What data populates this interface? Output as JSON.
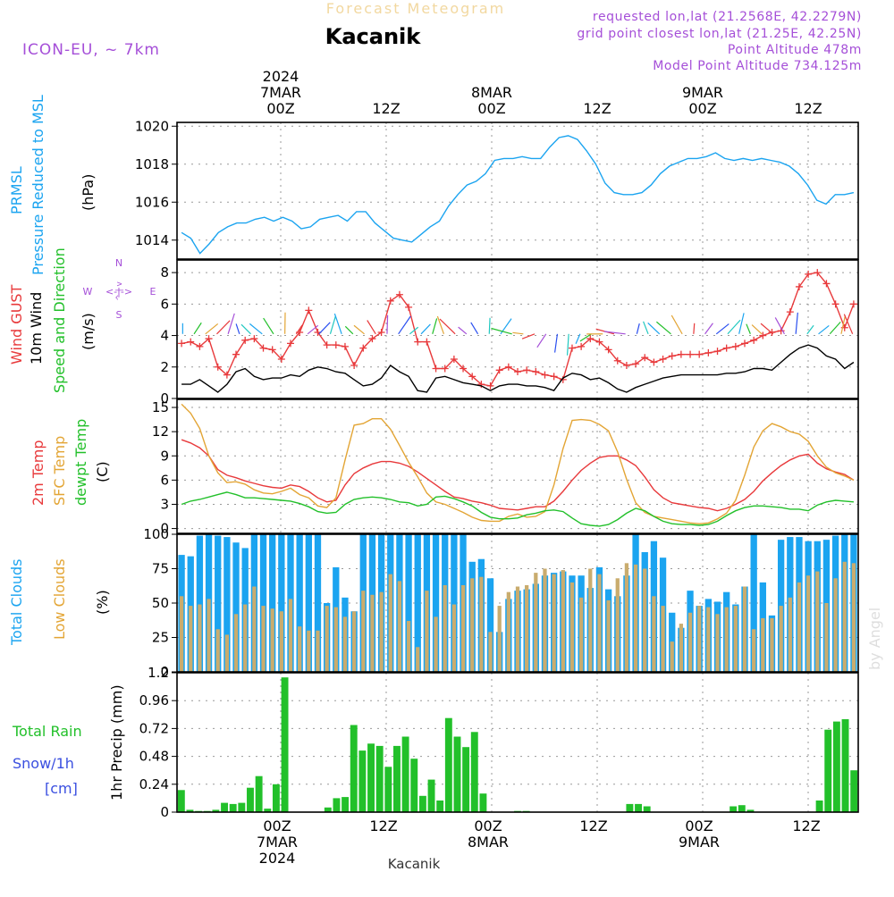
{
  "header": {
    "top_title": "Forecast Meteogram",
    "location": "Kacanik",
    "model": "ICON-EU, ~ 7km",
    "requested": "requested lon,lat (21.2568E, 42.2279N)",
    "grid_point": "grid point closest lon,lat (21.25E, 42.25N)",
    "point_altitude": "Point Altitude 478m",
    "model_altitude": "Model Point Altitude 734.125m",
    "footer_location": "Kacanik",
    "watermark": "by Angel"
  },
  "time_axis": {
    "ticks": [
      "00Z",
      "12Z",
      "00Z",
      "12Z",
      "00Z",
      "12Z"
    ],
    "days": [
      "7MAR",
      "8MAR",
      "9MAR"
    ],
    "year": "2024"
  },
  "colors": {
    "blue": "#1ba4f0",
    "red": "#e8393b",
    "orange": "#e3a535",
    "green": "#22c02a",
    "black": "#000000",
    "purple": "#a54fd8",
    "tan": "#c9ac6e"
  },
  "panel_labels": {
    "pressure": [
      "PRMSL",
      "Pressure Reduced to MSL",
      "(hPa)"
    ],
    "wind": [
      "Wind GUST",
      "10m Wind",
      "Speed and Direction",
      "(m/s)"
    ],
    "compass": {
      "n": "N",
      "s": "S",
      "w": "W",
      "e": "E",
      "ns": "^\n|\nv",
      "we": "<-|->"
    },
    "temp": [
      "2m Temp",
      "SFC Temp",
      "dewpt Temp",
      "(C)"
    ],
    "clouds": [
      "Total Clouds",
      "Low Clouds",
      "(%)"
    ],
    "precip": [
      "Total Rain",
      "Snow/1h",
      "[cm]",
      "1hr Precip (mm)"
    ]
  },
  "chart_data": [
    {
      "type": "line",
      "title": "PRMSL Pressure Reduced to MSL",
      "ylabel": "(hPa)",
      "ylim": [
        1013,
        1020.2
      ],
      "yticks": [
        1014,
        1016,
        1018,
        1020
      ],
      "xlim": [
        0,
        73
      ],
      "series": [
        {
          "name": "PRMSL",
          "color": "#1ba4f0",
          "values": [
            1014.4,
            1014.1,
            1013.3,
            1013.8,
            1014.4,
            1014.7,
            1014.9,
            1014.9,
            1015.1,
            1015.2,
            1015.0,
            1015.2,
            1015.0,
            1014.6,
            1014.7,
            1015.1,
            1015.2,
            1015.3,
            1015.0,
            1015.5,
            1015.5,
            1014.9,
            1014.5,
            1014.1,
            1014.0,
            1013.9,
            1014.3,
            1014.7,
            1015.0,
            1015.8,
            1016.4,
            1016.9,
            1017.1,
            1017.5,
            1018.2,
            1018.3,
            1018.3,
            1018.4,
            1018.3,
            1018.3,
            1018.9,
            1019.4,
            1019.5,
            1019.3,
            1018.7,
            1018.0,
            1017.0,
            1016.5,
            1016.4,
            1016.4,
            1016.5,
            1016.9,
            1017.5,
            1017.9,
            1018.1,
            1018.3,
            1018.3,
            1018.4,
            1018.6,
            1018.3,
            1018.2,
            1018.3,
            1018.2,
            1018.3,
            1018.2,
            1018.1,
            1017.9,
            1017.5,
            1016.9,
            1016.1,
            1015.9,
            1016.4,
            1016.4,
            1016.5
          ]
        }
      ]
    },
    {
      "type": "line",
      "title": "Wind GUST / 10m Wind Speed and Direction",
      "ylabel": "(m/s)",
      "ylim": [
        0,
        8.8
      ],
      "yticks": [
        0,
        2,
        4,
        6,
        8
      ],
      "xlim": [
        0,
        73
      ],
      "series": [
        {
          "name": "Wind GUST",
          "color": "#e8393b",
          "values": [
            3.5,
            3.6,
            3.3,
            3.8,
            2.0,
            1.5,
            2.8,
            3.7,
            3.8,
            3.2,
            3.1,
            2.5,
            3.5,
            4.2,
            5.6,
            4.2,
            3.4,
            3.4,
            3.3,
            2.1,
            3.2,
            3.8,
            4.2,
            6.2,
            6.6,
            5.8,
            3.6,
            3.6,
            1.9,
            1.9,
            2.5,
            1.9,
            1.4,
            0.9,
            0.8,
            1.8,
            2.0,
            1.7,
            1.8,
            1.7,
            1.5,
            1.4,
            1.2,
            3.2,
            3.3,
            3.8,
            3.6,
            3.1,
            2.4,
            2.1,
            2.2,
            2.6,
            2.3,
            2.5,
            2.7,
            2.8,
            2.8,
            2.8,
            2.9,
            3.0,
            3.2,
            3.3,
            3.5,
            3.7,
            4.0,
            4.2,
            4.3,
            5.5,
            7.1,
            7.9,
            8.0,
            7.3,
            6.0,
            4.5,
            6.0
          ]
        },
        {
          "name": "10m Wind",
          "color": "#000000",
          "values": [
            0.9,
            0.9,
            1.2,
            0.8,
            0.4,
            0.9,
            1.7,
            1.9,
            1.4,
            1.2,
            1.3,
            1.3,
            1.5,
            1.4,
            1.8,
            2.0,
            1.9,
            1.7,
            1.6,
            1.2,
            0.8,
            0.9,
            1.3,
            2.1,
            1.7,
            1.4,
            0.5,
            0.4,
            1.3,
            1.4,
            1.2,
            1.0,
            0.9,
            0.8,
            0.5,
            0.8,
            0.9,
            0.9,
            0.8,
            0.8,
            0.7,
            0.5,
            1.3,
            1.6,
            1.5,
            1.2,
            1.3,
            1.0,
            0.6,
            0.4,
            0.7,
            0.9,
            1.1,
            1.3,
            1.4,
            1.5,
            1.5,
            1.5,
            1.5,
            1.5,
            1.6,
            1.6,
            1.7,
            1.9,
            1.9,
            1.8,
            2.3,
            2.8,
            3.2,
            3.4,
            3.2,
            2.7,
            2.5,
            1.9,
            2.3
          ]
        }
      ]
    },
    {
      "type": "line",
      "title": "2m Temp / SFC Temp / dewpt Temp",
      "ylabel": "(C)",
      "ylim": [
        -0.6,
        16
      ],
      "yticks": [
        0,
        3,
        6,
        9,
        12,
        15
      ],
      "xlim": [
        0,
        73
      ],
      "series": [
        {
          "name": "2m Temp",
          "color": "#e8393b",
          "values": [
            11.0,
            10.6,
            10.0,
            9.0,
            7.3,
            6.6,
            6.3,
            5.9,
            5.6,
            5.3,
            5.1,
            5.0,
            5.4,
            5.2,
            4.6,
            3.8,
            3.3,
            3.5,
            5.4,
            6.8,
            7.5,
            8.0,
            8.3,
            8.3,
            8.1,
            7.7,
            7.0,
            6.2,
            5.4,
            4.6,
            3.9,
            3.7,
            3.4,
            3.2,
            2.9,
            2.5,
            2.4,
            2.3,
            2.5,
            2.7,
            2.7,
            3.4,
            4.6,
            6.0,
            7.2,
            8.1,
            8.8,
            9.0,
            9.0,
            8.5,
            7.8,
            6.4,
            4.8,
            3.8,
            3.2,
            3.0,
            2.8,
            2.6,
            2.5,
            2.2,
            2.5,
            3.0,
            3.6,
            4.6,
            5.9,
            6.9,
            7.8,
            8.5,
            9.0,
            9.2,
            8.1,
            7.4,
            7.0,
            6.7,
            6.0
          ]
        },
        {
          "name": "SFC Temp",
          "color": "#e3a535",
          "values": [
            15.4,
            14.3,
            12.4,
            9.0,
            6.9,
            5.7,
            5.8,
            5.5,
            4.8,
            4.4,
            4.3,
            4.6,
            5.0,
            4.2,
            3.8,
            2.8,
            2.6,
            3.8,
            8.5,
            12.8,
            13.0,
            13.6,
            13.6,
            12.3,
            10.3,
            8.2,
            6.4,
            4.4,
            3.3,
            3.0,
            2.5,
            2.0,
            1.4,
            1.0,
            0.9,
            0.9,
            1.5,
            1.8,
            1.4,
            1.5,
            2.1,
            5.4,
            9.9,
            13.4,
            13.5,
            13.4,
            12.9,
            12.1,
            9.5,
            6.1,
            3.2,
            2.0,
            1.5,
            1.3,
            1.1,
            0.9,
            0.7,
            0.6,
            0.7,
            1.2,
            1.9,
            3.5,
            6.6,
            10.1,
            12.1,
            13.0,
            12.6,
            12.0,
            11.7,
            10.8,
            9.0,
            7.6,
            6.9,
            6.5,
            6.0
          ]
        },
        {
          "name": "dewpt Temp",
          "color": "#22c02a",
          "values": [
            3.0,
            3.4,
            3.6,
            3.9,
            4.2,
            4.5,
            4.2,
            3.8,
            3.8,
            3.7,
            3.6,
            3.5,
            3.4,
            3.1,
            2.7,
            2.1,
            1.9,
            2.0,
            3.0,
            3.6,
            3.8,
            3.9,
            3.8,
            3.6,
            3.3,
            3.2,
            2.8,
            3.0,
            3.9,
            4.0,
            3.7,
            3.3,
            2.8,
            2.0,
            1.4,
            1.2,
            1.2,
            1.3,
            1.7,
            1.9,
            2.2,
            2.3,
            2.1,
            1.3,
            0.6,
            0.4,
            0.3,
            0.5,
            1.1,
            1.9,
            2.5,
            2.2,
            1.5,
            0.9,
            0.6,
            0.5,
            0.5,
            0.4,
            0.5,
            0.9,
            1.6,
            2.2,
            2.6,
            2.8,
            2.8,
            2.7,
            2.6,
            2.4,
            2.4,
            2.2,
            2.9,
            3.3,
            3.5,
            3.4,
            3.3
          ]
        }
      ]
    },
    {
      "type": "bar",
      "title": "Total Clouds / Low Clouds",
      "ylabel": "(%)",
      "ylim": [
        0,
        100
      ],
      "yticks": [
        0,
        25,
        50,
        75,
        100
      ],
      "xlim": [
        0,
        73
      ],
      "series": [
        {
          "name": "Total Clouds",
          "color": "#1ba4f0",
          "values": [
            85,
            84,
            99,
            100,
            99,
            98,
            94,
            90,
            100,
            100,
            100,
            100,
            100,
            100,
            100,
            100,
            50,
            76,
            54,
            44,
            100,
            100,
            100,
            100,
            100,
            100,
            100,
            100,
            100,
            100,
            100,
            100,
            80,
            82,
            68,
            29,
            53,
            59,
            60,
            64,
            70,
            72,
            73,
            70,
            70,
            61,
            76,
            60,
            55,
            70,
            100,
            87,
            95,
            83,
            43,
            32,
            59,
            48,
            53,
            51,
            58,
            49,
            62,
            100,
            65,
            41,
            96,
            98,
            98,
            95,
            95,
            96,
            99,
            100,
            100
          ]
        },
        {
          "name": "Low Clouds",
          "color": "#c9ac6e",
          "values": [
            55,
            48,
            49,
            53,
            31,
            27,
            42,
            49,
            62,
            48,
            46,
            44,
            53,
            33,
            30,
            30,
            48,
            47,
            40,
            44,
            59,
            56,
            58,
            71,
            66,
            37,
            18,
            59,
            40,
            63,
            49,
            63,
            68,
            69,
            29,
            48,
            58,
            62,
            63,
            72,
            75,
            71,
            74,
            65,
            54,
            75,
            71,
            52,
            68,
            79,
            78,
            75,
            55,
            48,
            22,
            35,
            43,
            48,
            47,
            42,
            47,
            48,
            62,
            31,
            39,
            39,
            48,
            54,
            65,
            70,
            73,
            50,
            68,
            80,
            79
          ]
        }
      ]
    },
    {
      "type": "bar",
      "title": "1hr Precip (mm)",
      "ylabel": "1hr Precip (mm)",
      "ylim": [
        0,
        1.2
      ],
      "yticks": [
        0,
        0.24,
        0.48,
        0.72,
        0.96,
        1.2
      ],
      "xlim": [
        0,
        73
      ],
      "series": [
        {
          "name": "Total Rain",
          "color": "#22c02a",
          "values": [
            0.19,
            0.02,
            0.01,
            0.01,
            0.02,
            0.08,
            0.07,
            0.08,
            0.21,
            0.31,
            0.03,
            0.24,
            1.16,
            0.0,
            0.0,
            0.0,
            0.0,
            0.04,
            0.12,
            0.13,
            0.75,
            0.53,
            0.59,
            0.57,
            0.39,
            0.57,
            0.65,
            0.46,
            0.14,
            0.28,
            0.1,
            0.81,
            0.65,
            0.56,
            0.69,
            0.16,
            0.0,
            0.0,
            0.0,
            0.01,
            0.01,
            0.0,
            0.0,
            0.0,
            0.0,
            0.0,
            0.0,
            0.0,
            0.0,
            0.0,
            0.0,
            0.0,
            0.07,
            0.07,
            0.05,
            0.0,
            0.0,
            0.0,
            0.0,
            0.0,
            0.0,
            0.0,
            0.0,
            0.0,
            0.05,
            0.06,
            0.02,
            0.0,
            0.0,
            0.0,
            0.0,
            0.0,
            0.0,
            0.0,
            0.1,
            0.71,
            0.78,
            0.8,
            0.36
          ]
        }
      ]
    }
  ]
}
